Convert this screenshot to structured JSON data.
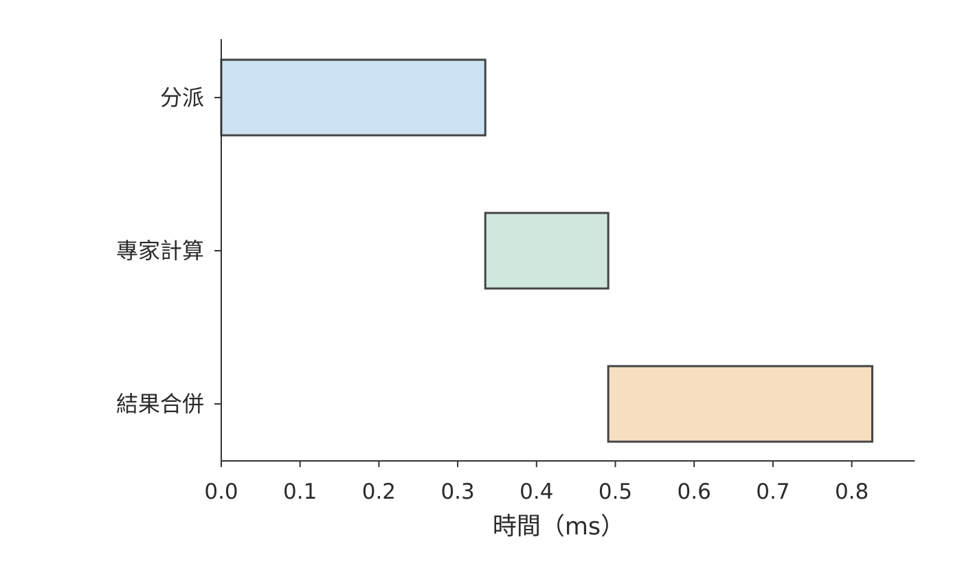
{
  "chart_data": {
    "type": "bar",
    "orientation": "horizontal",
    "subtype": "gantt",
    "title": "",
    "xlabel": "時間（ms）",
    "ylabel": "",
    "xlim": [
      0,
      0.88
    ],
    "xticks": [
      0.0,
      0.1,
      0.2,
      0.3,
      0.4,
      0.5,
      0.6,
      0.7,
      0.8
    ],
    "xtick_labels": [
      "0.0",
      "0.1",
      "0.2",
      "0.3",
      "0.4",
      "0.5",
      "0.6",
      "0.7",
      "0.8"
    ],
    "categories": [
      "分派",
      "專家計算",
      "結果合併"
    ],
    "bars": [
      {
        "category": "分派",
        "start": 0.0,
        "end": 0.335,
        "color": "#cde3f3"
      },
      {
        "category": "專家計算",
        "start": 0.335,
        "end": 0.491,
        "color": "#d0e8dc"
      },
      {
        "category": "結果合併",
        "start": 0.491,
        "end": 0.826,
        "color": "#f8dec1"
      }
    ],
    "grid": false,
    "legend": "none"
  }
}
